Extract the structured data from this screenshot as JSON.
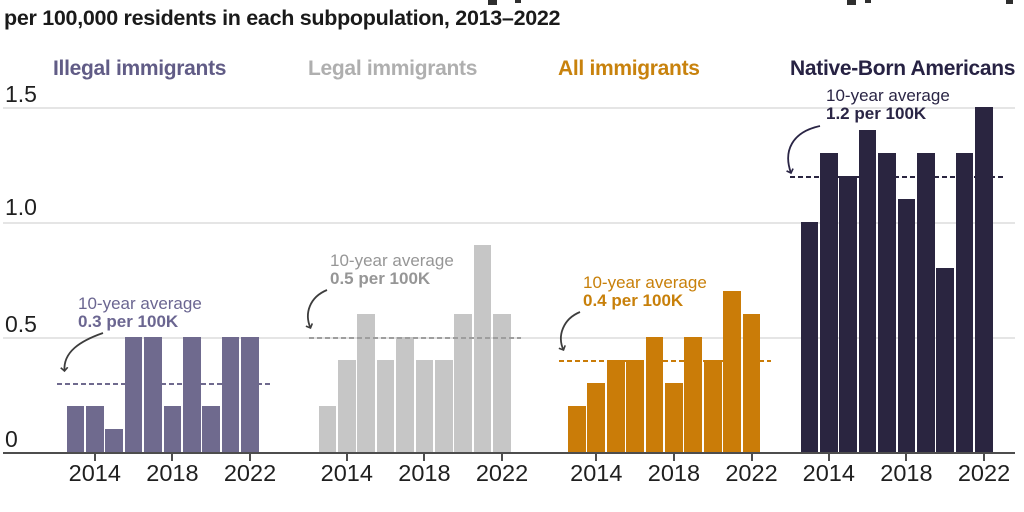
{
  "title": {
    "line": "per 100,000 residents in each subpopulation, 2013–2022"
  },
  "chart_data": {
    "type": "bar",
    "title_visible_line": "per 100,000 residents in each subpopulation, 2013–2022",
    "x": [
      2013,
      2014,
      2015,
      2016,
      2017,
      2018,
      2019,
      2020,
      2021,
      2022
    ],
    "x_tick_labels": [
      "2014",
      "2018",
      "2022"
    ],
    "y_ticks": [
      {
        "label": "1.5",
        "value": 1.5
      },
      {
        "label": "1.0",
        "value": 1.0
      },
      {
        "label": "0.5",
        "value": 0.5
      },
      {
        "label": "0",
        "value": 0
      }
    ],
    "ylim": [
      0,
      1.5
    ],
    "grid": true,
    "legend_position": "group headers above each panel",
    "groups": [
      {
        "label": "Illegal immigrants",
        "bar_color": "#6F6A8E",
        "label_color": "#615C86",
        "ann_color": "#6B6691",
        "dash_color": "#6F6A8E",
        "arrow_color": "#3d3d3d",
        "values": [
          0.2,
          0.2,
          0.1,
          0.5,
          0.5,
          0.2,
          0.5,
          0.2,
          0.5,
          0.5
        ],
        "average": 0.3,
        "annotation": {
          "line1": "10-year average",
          "line2": "0.3 per 100K"
        }
      },
      {
        "label": "Legal immigrants",
        "bar_color": "#C6C6C6",
        "label_color": "#AFAFAF",
        "ann_color": "#969696",
        "dash_color": "#9E9E9E",
        "arrow_color": "#3d3d3d",
        "values": [
          0.2,
          0.4,
          0.6,
          0.4,
          0.5,
          0.4,
          0.4,
          0.6,
          0.9,
          0.6
        ],
        "average": 0.5,
        "annotation": {
          "line1": "10-year average",
          "line2": "0.5 per 100K"
        }
      },
      {
        "label": "All immigrants",
        "bar_color": "#CA7C08",
        "label_color": "#C8820D",
        "ann_color": "#C8800A",
        "dash_color": "#CA7C08",
        "arrow_color": "#3d3d3d",
        "values": [
          0.2,
          0.3,
          0.4,
          0.4,
          0.5,
          0.3,
          0.5,
          0.4,
          0.7,
          0.6
        ],
        "average": 0.4,
        "annotation": {
          "line1": "10-year average",
          "line2": "0.4 per 100K"
        }
      },
      {
        "label": "Native-Born Americans",
        "bar_color": "#2A2540",
        "label_color": "#272243",
        "ann_color": "#2A2545",
        "dash_color": "#2A2540",
        "arrow_color": "#2A2545",
        "values": [
          1.0,
          1.3,
          1.2,
          1.4,
          1.3,
          1.1,
          1.3,
          0.8,
          1.3,
          1.5
        ],
        "average": 1.2,
        "annotation": {
          "line1": "10-year average",
          "line2": "1.2 per 100K"
        }
      }
    ]
  }
}
